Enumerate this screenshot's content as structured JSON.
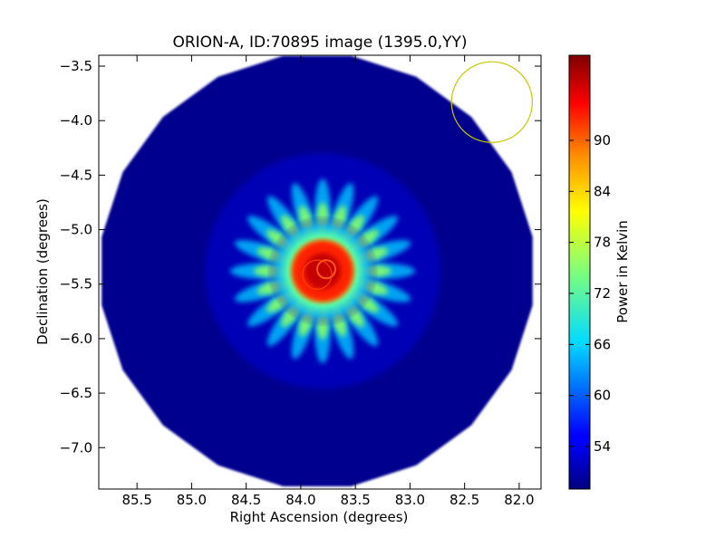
{
  "chart_data": {
    "type": "heatmap",
    "title": "ORION-A, ID:70895 image (1395.0,YY)",
    "xlabel": "Right Ascension (degrees)",
    "ylabel": "Declination (degrees)",
    "xlim": [
      85.85,
      81.8
    ],
    "ylim": [
      -7.38,
      -3.4
    ],
    "x_inverted": true,
    "xticks": [
      85.5,
      85.0,
      84.5,
      84.0,
      83.5,
      83.0,
      82.5,
      82.0
    ],
    "xtick_labels": [
      "85.5",
      "85.0",
      "84.5",
      "84.0",
      "83.5",
      "83.0",
      "82.5",
      "82.0"
    ],
    "yticks": [
      -3.5,
      -4.0,
      -4.5,
      -5.0,
      -5.5,
      -6.0,
      -6.5,
      -7.0
    ],
    "ytick_labels": [
      "−3.5",
      "−4.0",
      "−4.5",
      "−5.0",
      "−5.5",
      "−6.0",
      "−6.5",
      "−7.0"
    ],
    "colormap": "jet",
    "colorbar": {
      "label": "Power in Kelvin",
      "range": [
        49,
        100
      ],
      "ticks": [
        54,
        60,
        66,
        72,
        78,
        84,
        90
      ],
      "tick_labels": [
        "54",
        "60",
        "66",
        "72",
        "78",
        "84",
        "90"
      ]
    },
    "background_level": 50,
    "sky_region": {
      "shape": "polygon",
      "center_ra": 83.85,
      "center_dec": -5.38,
      "radius_deg": 2.0
    },
    "source": {
      "ra": 83.8,
      "dec": -5.38,
      "peak": 97,
      "spokes": 20
    },
    "beam_circle": {
      "ra": 82.25,
      "dec": -3.83,
      "radius_deg": 0.37,
      "color": "#c8c800"
    }
  }
}
